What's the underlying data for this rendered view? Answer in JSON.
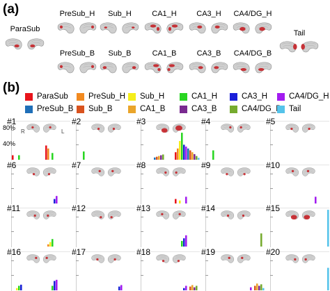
{
  "panels": {
    "a": "(a)",
    "b": "(b)"
  },
  "regions_a": [
    {
      "name": "ParaSub",
      "label": "ParaSub"
    },
    {
      "name": "PreSub_H",
      "label": "PreSub_H"
    },
    {
      "name": "Sub_H",
      "label": "Sub_H"
    },
    {
      "name": "CA1_H",
      "label": "CA1_H"
    },
    {
      "name": "CA3_H",
      "label": "CA3_H"
    },
    {
      "name": "CA4/DG_H",
      "label": "CA4/DG_H"
    },
    {
      "name": "Tail",
      "label": "Tail"
    },
    {
      "name": "PreSub_B",
      "label": "PreSub_B"
    },
    {
      "name": "Sub_B",
      "label": "Sub_B"
    },
    {
      "name": "CA1_B",
      "label": "CA1_B"
    },
    {
      "name": "CA3_B",
      "label": "CA3_B"
    },
    {
      "name": "CA4/DG_B",
      "label": "CA4/DG_B"
    }
  ],
  "legend": [
    {
      "label": "ParaSub",
      "color": "#e8141b"
    },
    {
      "label": "PreSub_H",
      "color": "#f28a20"
    },
    {
      "label": "Sub_H",
      "color": "#f5ee1a"
    },
    {
      "label": "CA1_H",
      "color": "#29d622"
    },
    {
      "label": "CA3_H",
      "color": "#1a1fd9"
    },
    {
      "label": "CA4/DG_H",
      "color": "#a21cf0"
    },
    {
      "label": "PreSub_B",
      "color": "#1f6fb8"
    },
    {
      "label": "Sub_B",
      "color": "#d9531e"
    },
    {
      "label": "CA1_B",
      "color": "#eaa52a"
    },
    {
      "label": "CA3_B",
      "color": "#7a2a90"
    },
    {
      "label": "CA4/DG_B",
      "color": "#76ab2f"
    },
    {
      "label": "Tail",
      "color": "#55c3ea"
    }
  ],
  "axis": {
    "ytick_top": "80%",
    "ytick_mid": "40%",
    "left_label": "R",
    "right_label": "L"
  },
  "chart_data": {
    "type": "bar",
    "ylim": [
      0,
      1
    ],
    "yticks": [
      "80%",
      "40%"
    ],
    "categories": [
      "ParaSub",
      "PreSub_H",
      "Sub_H",
      "CA1_H",
      "CA3_H",
      "CA4/DG_H",
      "PreSub_B",
      "Sub_B",
      "CA1_B",
      "CA3_B",
      "CA4/DG_B",
      "Tail",
      "ParaSub",
      "PreSub_H",
      "Sub_H",
      "CA1_H",
      "CA3_H",
      "CA4/DG_H",
      "PreSub_B",
      "Sub_B",
      "CA1_B",
      "CA3_B",
      "CA4/DG_B",
      "Tail"
    ],
    "hemispheres": [
      "R",
      "L"
    ],
    "components": [
      {
        "label": "#1",
        "values": [
          0.12,
          0,
          0,
          0.12,
          0,
          0,
          0,
          0,
          0,
          0,
          0,
          0,
          0.38,
          0.3,
          0,
          0.18,
          0,
          0,
          0,
          0,
          0,
          0,
          0,
          0
        ]
      },
      {
        "label": "#2",
        "values": [
          0,
          0,
          0,
          0.22,
          0,
          0,
          0,
          0,
          0,
          0,
          0,
          0,
          0,
          0,
          0,
          0,
          0,
          0,
          0,
          0,
          0,
          0,
          0,
          0
        ]
      },
      {
        "label": "#3",
        "values": [
          0,
          0,
          0,
          0,
          0,
          0,
          0.06,
          0.08,
          0.1,
          0.12,
          0.14,
          0,
          0.2,
          0.3,
          0.5,
          0.72,
          0.4,
          0.35,
          0.3,
          0.25,
          0.2,
          0.15,
          0.1,
          0.05
        ]
      },
      {
        "label": "#4",
        "values": [
          0,
          0,
          0,
          0.25,
          0,
          0,
          0,
          0,
          0,
          0,
          0,
          0,
          0,
          0,
          0,
          0,
          0,
          0,
          0,
          0,
          0,
          0,
          0,
          0
        ]
      },
      {
        "label": "#5",
        "values": [
          0,
          0,
          0,
          0,
          0,
          0,
          0,
          0,
          0,
          0,
          0,
          0,
          0,
          0,
          0,
          0,
          0,
          0,
          0,
          0,
          0,
          0,
          0,
          0
        ]
      },
      {
        "label": "#6",
        "values": [
          0,
          0,
          0,
          0,
          0,
          0,
          0,
          0,
          0,
          0,
          0,
          0,
          0,
          0,
          0,
          0,
          0.12,
          0.2,
          0,
          0,
          0,
          0,
          0,
          0
        ]
      },
      {
        "label": "#7",
        "values": [
          0,
          0,
          0,
          0,
          0,
          0,
          0,
          0,
          0,
          0,
          0,
          0,
          0,
          0,
          0,
          0,
          0,
          0,
          0,
          0,
          0,
          0,
          0,
          0
        ]
      },
      {
        "label": "#8",
        "values": [
          0,
          0,
          0,
          0,
          0,
          0,
          0,
          0,
          0,
          0,
          0,
          0,
          0.12,
          0,
          0.08,
          0,
          0,
          0.18,
          0,
          0,
          0,
          0,
          0,
          0
        ]
      },
      {
        "label": "#9",
        "values": [
          0,
          0,
          0,
          0,
          0,
          0,
          0,
          0,
          0,
          0,
          0,
          0,
          0,
          0,
          0,
          0,
          0,
          0,
          0,
          0,
          0,
          0,
          0,
          0
        ]
      },
      {
        "label": "#10",
        "values": [
          0,
          0,
          0,
          0,
          0,
          0,
          0,
          0,
          0,
          0,
          0,
          0,
          0,
          0,
          0,
          0,
          0,
          0.18,
          0,
          0,
          0,
          0,
          0,
          0
        ]
      },
      {
        "label": "#11",
        "values": [
          0,
          0,
          0,
          0,
          0,
          0,
          0,
          0,
          0,
          0,
          0,
          0,
          0,
          0.06,
          0.12,
          0.2,
          0,
          0,
          0,
          0,
          0,
          0,
          0,
          0
        ]
      },
      {
        "label": "#12",
        "values": [
          0,
          0,
          0,
          0,
          0,
          0,
          0,
          0,
          0,
          0,
          0,
          0,
          0,
          0,
          0,
          0,
          0,
          0,
          0,
          0,
          0,
          0,
          0,
          0
        ]
      },
      {
        "label": "#13",
        "values": [
          0,
          0,
          0,
          0,
          0,
          0,
          0,
          0,
          0,
          0,
          0,
          0,
          0,
          0,
          0,
          0.15,
          0.22,
          0.3,
          0,
          0,
          0,
          0,
          0,
          0
        ]
      },
      {
        "label": "#14",
        "values": [
          0,
          0,
          0,
          0,
          0,
          0,
          0,
          0,
          0,
          0,
          0,
          0,
          0,
          0,
          0,
          0,
          0,
          0,
          0,
          0,
          0,
          0,
          0.35,
          0
        ]
      },
      {
        "label": "#15",
        "values": [
          0,
          0,
          0,
          0,
          0,
          0,
          0,
          0,
          0,
          0,
          0,
          0,
          0,
          0,
          0,
          0,
          0,
          0,
          0,
          0,
          0,
          0,
          0,
          0.98
        ]
      },
      {
        "label": "#16",
        "values": [
          0,
          0,
          0.06,
          0.12,
          0.15,
          0,
          0,
          0,
          0,
          0,
          0,
          0,
          0,
          0,
          0,
          0.12,
          0.25,
          0.28,
          0,
          0,
          0,
          0,
          0,
          0
        ]
      },
      {
        "label": "#17",
        "values": [
          0,
          0,
          0,
          0,
          0,
          0,
          0,
          0,
          0,
          0,
          0,
          0,
          0,
          0,
          0,
          0,
          0.1,
          0.14,
          0,
          0,
          0,
          0,
          0,
          0
        ]
      },
      {
        "label": "#18",
        "values": [
          0,
          0,
          0,
          0,
          0,
          0,
          0,
          0,
          0,
          0,
          0,
          0,
          0,
          0,
          0,
          0,
          0.06,
          0.12,
          0,
          0.1,
          0.14,
          0.08,
          0.12,
          0
        ]
      },
      {
        "label": "#19",
        "values": [
          0,
          0,
          0,
          0,
          0,
          0,
          0,
          0,
          0,
          0,
          0,
          0,
          0,
          0,
          0,
          0,
          0,
          0.08,
          0,
          0.12,
          0.18,
          0.12,
          0.16,
          0.06
        ]
      },
      {
        "label": "#20",
        "values": [
          0,
          0,
          0,
          0,
          0,
          0,
          0,
          0,
          0,
          0,
          0,
          0,
          0,
          0,
          0,
          0,
          0,
          0,
          0,
          0,
          0,
          0,
          0,
          0.6
        ]
      }
    ]
  }
}
